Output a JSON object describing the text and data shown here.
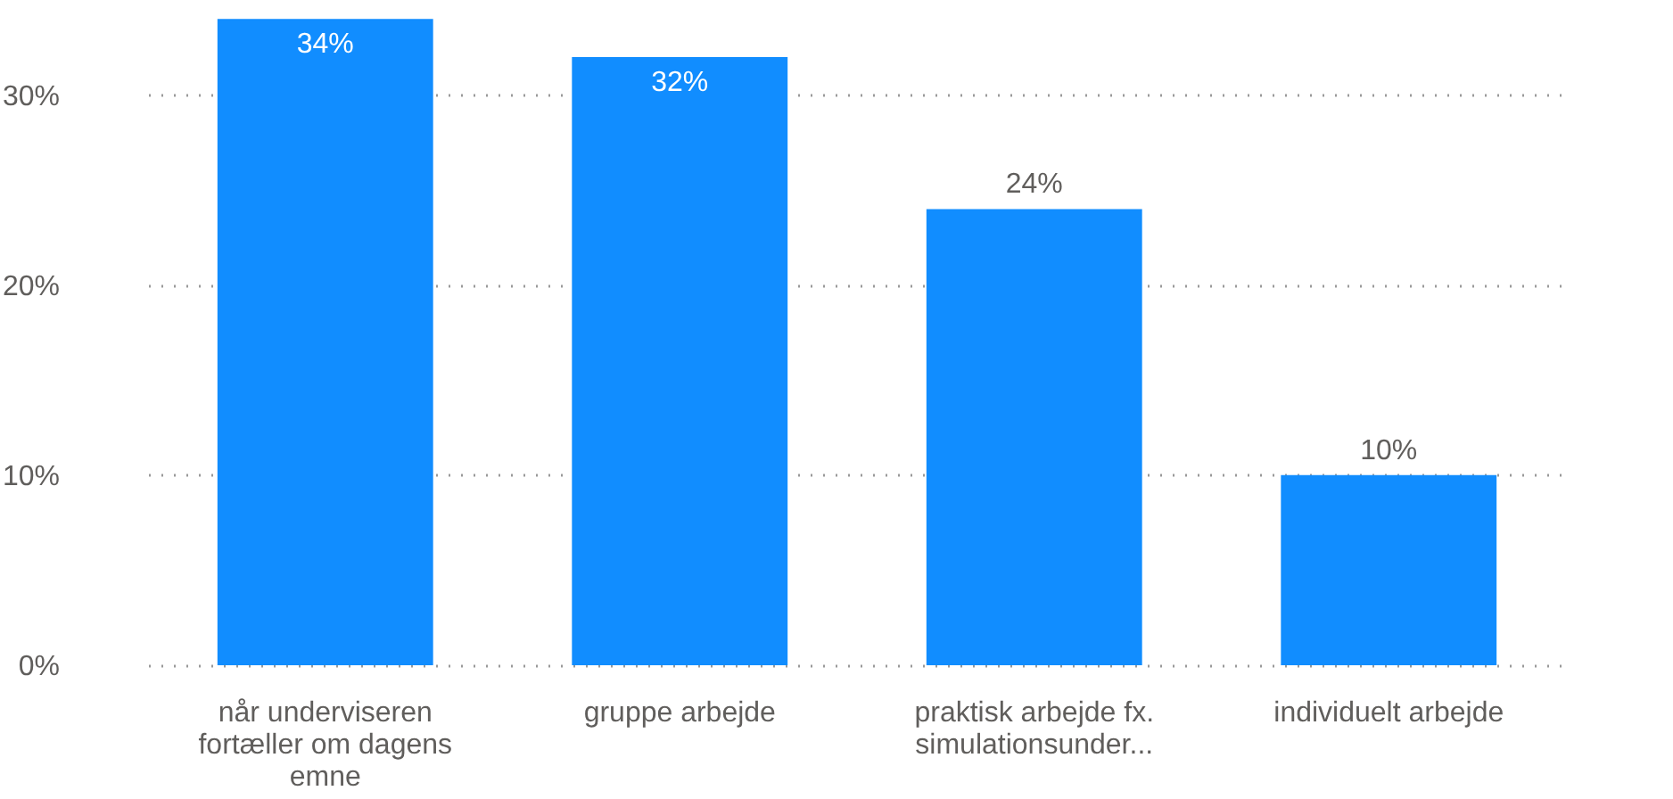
{
  "chart_data": {
    "type": "bar",
    "categories": [
      "når underviseren fortæller om dagens emne",
      "gruppe arbejde",
      "praktisk arbejde fx. simulationsunder...",
      "individuelt arbejde"
    ],
    "values": [
      34,
      32,
      24,
      10
    ],
    "color": "#118dff",
    "ylim": [
      0,
      35
    ],
    "yticks": [
      {
        "value": 0,
        "label": "0%"
      },
      {
        "value": 10,
        "label": "10%"
      },
      {
        "value": 20,
        "label": "20%"
      },
      {
        "value": 30,
        "label": "30%"
      }
    ],
    "value_labels": [
      "34%",
      "32%",
      "24%",
      "10%"
    ],
    "grid": "y"
  }
}
